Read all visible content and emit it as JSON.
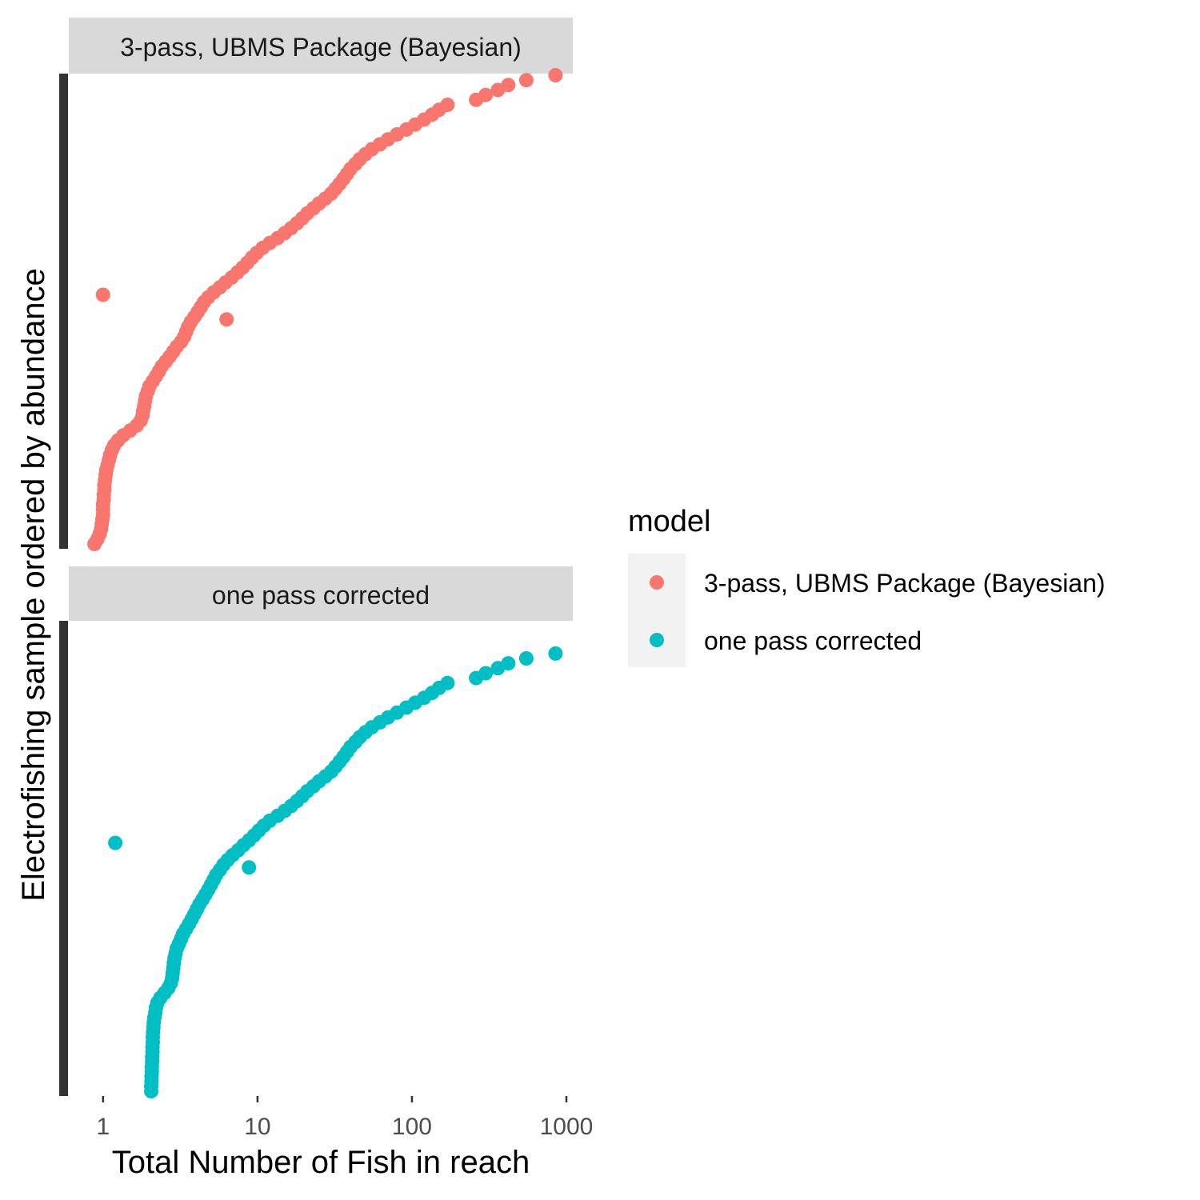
{
  "chart_data": {
    "type": "scatter",
    "xlabel": "Total Number of Fish in reach",
    "ylabel": "Electrofishing sample ordered by abundance",
    "x_scale": "log10",
    "xlim": [
      0.6,
      1100
    ],
    "x_ticks": [
      1,
      10,
      100,
      1000
    ],
    "x_tick_labels": [
      "1",
      "10",
      "100",
      "1000"
    ],
    "y_ticks_shown": false,
    "grid": false,
    "legend": {
      "title": "model",
      "position": "right",
      "entries": [
        "3-pass, UBMS Package (Bayesian)",
        "one pass corrected"
      ]
    },
    "colors": {
      "3-pass, UBMS Package (Bayesian)": "#F8766D",
      "one pass corrected": "#00BFC4"
    },
    "facets": [
      {
        "label": "3-pass, UBMS Package (Bayesian)",
        "series": "3-pass, UBMS Package (Bayesian)",
        "points": [
          [
            0.88,
            1
          ],
          [
            0.92,
            3
          ],
          [
            0.95,
            5
          ],
          [
            0.97,
            7
          ],
          [
            0.98,
            9
          ],
          [
            0.99,
            11
          ],
          [
            1.0,
            13
          ],
          [
            1.0,
            15
          ],
          [
            1.0,
            17
          ],
          [
            1.01,
            19
          ],
          [
            1.01,
            21
          ],
          [
            1.02,
            23
          ],
          [
            1.02,
            25
          ],
          [
            1.03,
            27
          ],
          [
            1.04,
            29
          ],
          [
            1.05,
            31
          ],
          [
            1.07,
            33
          ],
          [
            1.09,
            35
          ],
          [
            1.11,
            37
          ],
          [
            1.14,
            39
          ],
          [
            1.18,
            41
          ],
          [
            1.25,
            43
          ],
          [
            1.35,
            45
          ],
          [
            1.5,
            47
          ],
          [
            1.65,
            49
          ],
          [
            1.75,
            51
          ],
          [
            1.8,
            53
          ],
          [
            1.82,
            55
          ],
          [
            1.85,
            57
          ],
          [
            1.87,
            59
          ],
          [
            1.9,
            61
          ],
          [
            1.95,
            63
          ],
          [
            2.0,
            65
          ],
          [
            2.1,
            67
          ],
          [
            2.2,
            69
          ],
          [
            2.3,
            71
          ],
          [
            2.4,
            73
          ],
          [
            2.55,
            75
          ],
          [
            2.7,
            77
          ],
          [
            2.85,
            79
          ],
          [
            3.0,
            81
          ],
          [
            3.2,
            83
          ],
          [
            3.35,
            85
          ],
          [
            3.45,
            87
          ],
          [
            3.55,
            89
          ],
          [
            3.7,
            91
          ],
          [
            3.9,
            93
          ],
          [
            4.1,
            95
          ],
          [
            4.3,
            97
          ],
          [
            4.5,
            99
          ],
          [
            4.8,
            101
          ],
          [
            5.2,
            103
          ],
          [
            5.7,
            105
          ],
          [
            6.2,
            107
          ],
          [
            6.8,
            109
          ],
          [
            7.4,
            111
          ],
          [
            8.0,
            113
          ],
          [
            8.6,
            115
          ],
          [
            9.2,
            117
          ],
          [
            9.9,
            119
          ],
          [
            10.8,
            121
          ],
          [
            12,
            123
          ],
          [
            13.5,
            125
          ],
          [
            15,
            127
          ],
          [
            16.5,
            129
          ],
          [
            18,
            131
          ],
          [
            19.5,
            133
          ],
          [
            21,
            135
          ],
          [
            23,
            137
          ],
          [
            25,
            139
          ],
          [
            27.5,
            141
          ],
          [
            30,
            143
          ],
          [
            32,
            145
          ],
          [
            34,
            147
          ],
          [
            36,
            149
          ],
          [
            38,
            151
          ],
          [
            40,
            153
          ],
          [
            43,
            155
          ],
          [
            46,
            157
          ],
          [
            50,
            159
          ],
          [
            55,
            161
          ],
          [
            62,
            163
          ],
          [
            70,
            165
          ],
          [
            80,
            167
          ],
          [
            92,
            169
          ],
          [
            105,
            171
          ],
          [
            120,
            173
          ],
          [
            135,
            175
          ],
          [
            150,
            177
          ],
          [
            170,
            179
          ],
          [
            260,
            181
          ],
          [
            300,
            183
          ],
          [
            360,
            185
          ],
          [
            420,
            187
          ],
          [
            550,
            189
          ],
          [
            850,
            191
          ],
          [
            1.0,
            102
          ],
          [
            6.3,
            92
          ]
        ]
      },
      {
        "label": "one pass corrected",
        "series": "one pass corrected",
        "points": [
          [
            2.05,
            1
          ],
          [
            2.05,
            3
          ],
          [
            2.06,
            5
          ],
          [
            2.06,
            7
          ],
          [
            2.07,
            9
          ],
          [
            2.07,
            11
          ],
          [
            2.08,
            13
          ],
          [
            2.08,
            15
          ],
          [
            2.09,
            17
          ],
          [
            2.09,
            19
          ],
          [
            2.1,
            21
          ],
          [
            2.1,
            23
          ],
          [
            2.11,
            25
          ],
          [
            2.12,
            27
          ],
          [
            2.13,
            29
          ],
          [
            2.15,
            31
          ],
          [
            2.18,
            33
          ],
          [
            2.2,
            35
          ],
          [
            2.25,
            37
          ],
          [
            2.35,
            39
          ],
          [
            2.5,
            41
          ],
          [
            2.65,
            43
          ],
          [
            2.75,
            45
          ],
          [
            2.8,
            47
          ],
          [
            2.82,
            49
          ],
          [
            2.85,
            51
          ],
          [
            2.87,
            53
          ],
          [
            2.9,
            55
          ],
          [
            2.95,
            57
          ],
          [
            3.0,
            59
          ],
          [
            3.1,
            61
          ],
          [
            3.2,
            63
          ],
          [
            3.3,
            65
          ],
          [
            3.45,
            67
          ],
          [
            3.6,
            69
          ],
          [
            3.75,
            71
          ],
          [
            3.9,
            73
          ],
          [
            4.05,
            75
          ],
          [
            4.2,
            77
          ],
          [
            4.4,
            79
          ],
          [
            4.6,
            81
          ],
          [
            4.8,
            83
          ],
          [
            5.0,
            85
          ],
          [
            5.2,
            87
          ],
          [
            5.4,
            89
          ],
          [
            5.7,
            91
          ],
          [
            6.0,
            93
          ],
          [
            6.4,
            95
          ],
          [
            6.9,
            97
          ],
          [
            7.5,
            99
          ],
          [
            8.1,
            101
          ],
          [
            8.8,
            103
          ],
          [
            9.5,
            105
          ],
          [
            10.2,
            107
          ],
          [
            11.0,
            109
          ],
          [
            12,
            111
          ],
          [
            13.5,
            113
          ],
          [
            15,
            115
          ],
          [
            16.5,
            117
          ],
          [
            18,
            119
          ],
          [
            19.5,
            121
          ],
          [
            21,
            123
          ],
          [
            23,
            125
          ],
          [
            25,
            127
          ],
          [
            27.5,
            129
          ],
          [
            30,
            131
          ],
          [
            32,
            133
          ],
          [
            34,
            135
          ],
          [
            36,
            137
          ],
          [
            38,
            139
          ],
          [
            40,
            141
          ],
          [
            43,
            143
          ],
          [
            46,
            145
          ],
          [
            50,
            147
          ],
          [
            55,
            149
          ],
          [
            62,
            151
          ],
          [
            70,
            153
          ],
          [
            80,
            155
          ],
          [
            92,
            157
          ],
          [
            105,
            159
          ],
          [
            120,
            161
          ],
          [
            135,
            163
          ],
          [
            150,
            165
          ],
          [
            170,
            167
          ],
          [
            260,
            169
          ],
          [
            300,
            171
          ],
          [
            360,
            173
          ],
          [
            420,
            175
          ],
          [
            550,
            177
          ],
          [
            850,
            179
          ],
          [
            1.2,
            102
          ],
          [
            8.8,
            92
          ]
        ]
      }
    ]
  }
}
